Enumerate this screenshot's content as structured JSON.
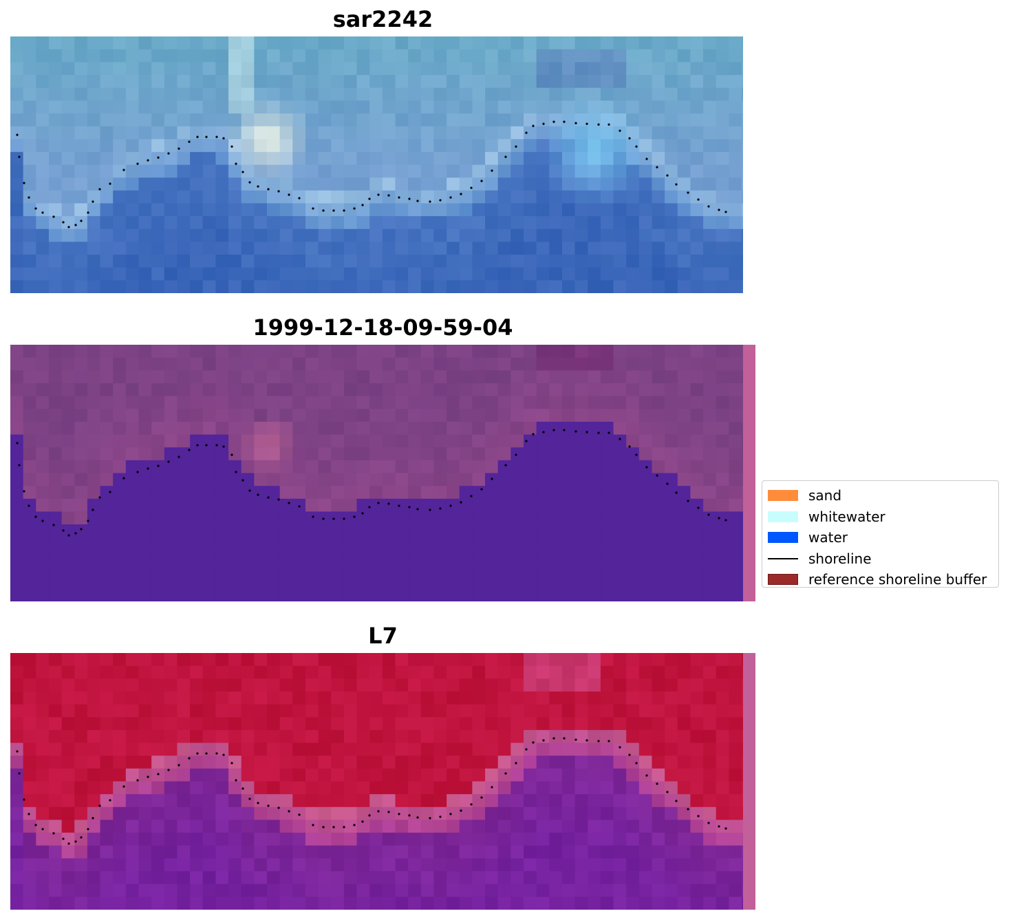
{
  "panels": [
    {
      "title": "sar2242"
    },
    {
      "title": "1999-12-18-09-59-04"
    },
    {
      "title": "L7"
    }
  ],
  "legend": {
    "placement": "right",
    "items": [
      {
        "label": "sand",
        "color": "#ff8c3a",
        "kind": "patch"
      },
      {
        "label": "whitewater",
        "color": "#c8fdfd",
        "kind": "patch"
      },
      {
        "label": "water",
        "color": "#0056ff",
        "kind": "patch"
      },
      {
        "label": "shoreline",
        "color": "#000000",
        "kind": "line"
      },
      {
        "label": "reference shoreline buffer",
        "color": "#9b2a2a",
        "edge": "#6d1a1a",
        "kind": "patch"
      }
    ]
  },
  "colors": {
    "rgb_sky": "#6aa8c8",
    "rgb_water": "#3a6ec0",
    "class_land": "#7c4284",
    "class_water": "#53249a",
    "index_land": "#c0123c",
    "index_water": "#7a2898",
    "buffer_strip": "#c2609a"
  }
}
